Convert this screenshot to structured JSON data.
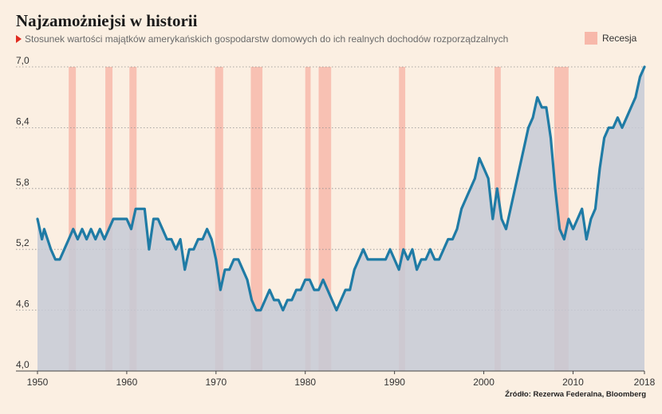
{
  "chart_data": {
    "type": "line",
    "title": "Najzamożniejsi w historii",
    "subtitle": "Stosunek wartości majątków amerykańskich gospodarstw domowych do ich realnych dochodów rozporządzalnych",
    "legend": {
      "label": "Recesja",
      "placement": "top-right"
    },
    "source": "Źródło: Rezerwa Federalna, Bloomberg",
    "colors": {
      "line": "#1f7ba5",
      "area": "#c5cad6",
      "recession": "#f7b8aa",
      "background": "#fbefe2"
    },
    "xlim": [
      1950,
      2018
    ],
    "ylim": [
      4.0,
      7.0
    ],
    "x_ticks": [
      "1950",
      "1960",
      "1970",
      "1980",
      "1990",
      "2000",
      "2010",
      "2018"
    ],
    "y_ticks": [
      "4,0",
      "4,6",
      "5,2",
      "5,8",
      "6,4",
      "7,0"
    ],
    "grid": "horizontal dotted",
    "recessions": [
      [
        1953.5,
        1954.3
      ],
      [
        1957.6,
        1958.4
      ],
      [
        1960.3,
        1961.1
      ],
      [
        1969.9,
        1970.8
      ],
      [
        1973.9,
        1975.2
      ],
      [
        1980.0,
        1980.6
      ],
      [
        1981.5,
        1982.9
      ],
      [
        1990.5,
        1991.2
      ],
      [
        2001.2,
        2001.9
      ],
      [
        2007.9,
        2009.5
      ]
    ],
    "series": [
      {
        "x": [
          1950.0,
          1950.5,
          1950.75,
          1951.5,
          1952.0,
          1952.5,
          1953.0,
          1953.5,
          1954.0,
          1954.5,
          1955.0,
          1955.5,
          1956.0,
          1956.5,
          1957.0,
          1957.5,
          1958.0,
          1958.5,
          1959.0,
          1959.5,
          1960.0,
          1960.5,
          1961.0,
          1961.5,
          1962.0,
          1962.5,
          1963.0,
          1963.5,
          1964.0,
          1964.5,
          1965.0,
          1965.5,
          1966.0,
          1966.5,
          1967.0,
          1967.5,
          1968.0,
          1968.5,
          1969.0,
          1969.5,
          1970.0,
          1970.5,
          1971.0,
          1971.5,
          1972.0,
          1972.5,
          1973.0,
          1973.5,
          1974.0,
          1974.5,
          1975.0,
          1975.5,
          1976.0,
          1976.5,
          1977.0,
          1977.5,
          1978.0,
          1978.5,
          1979.0,
          1979.5,
          1980.0,
          1980.5,
          1981.0,
          1981.5,
          1982.0,
          1982.5,
          1983.0,
          1983.5,
          1984.0,
          1984.5,
          1985.0,
          1985.5,
          1986.0,
          1986.5,
          1987.0,
          1987.5,
          1988.0,
          1988.5,
          1989.0,
          1989.5,
          1990.0,
          1990.5,
          1991.0,
          1991.5,
          1992.0,
          1992.5,
          1993.0,
          1993.5,
          1994.0,
          1994.5,
          1995.0,
          1995.5,
          1996.0,
          1996.5,
          1997.0,
          1997.5,
          1998.0,
          1998.5,
          1999.0,
          1999.5,
          2000.0,
          2000.5,
          2001.0,
          2001.5,
          2002.0,
          2002.5,
          2003.0,
          2003.5,
          2004.0,
          2004.5,
          2005.0,
          2005.5,
          2006.0,
          2006.5,
          2007.0,
          2007.5,
          2008.0,
          2008.5,
          2009.0,
          2009.5,
          2010.0,
          2010.5,
          2011.0,
          2011.5,
          2012.0,
          2012.5,
          2013.0,
          2013.5,
          2014.0,
          2014.5,
          2015.0,
          2015.5,
          2016.0,
          2016.5,
          2017.0,
          2017.5,
          2018.0
        ],
        "y": [
          5.5,
          5.3,
          5.4,
          5.2,
          5.1,
          5.1,
          5.2,
          5.3,
          5.4,
          5.3,
          5.4,
          5.3,
          5.4,
          5.3,
          5.4,
          5.3,
          5.4,
          5.5,
          5.5,
          5.5,
          5.5,
          5.4,
          5.6,
          5.6,
          5.6,
          5.2,
          5.5,
          5.5,
          5.4,
          5.3,
          5.3,
          5.2,
          5.3,
          5.0,
          5.2,
          5.2,
          5.3,
          5.3,
          5.4,
          5.3,
          5.1,
          4.8,
          5.0,
          5.0,
          5.1,
          5.1,
          5.0,
          4.9,
          4.7,
          4.6,
          4.6,
          4.7,
          4.8,
          4.7,
          4.7,
          4.6,
          4.7,
          4.7,
          4.8,
          4.8,
          4.9,
          4.9,
          4.8,
          4.8,
          4.9,
          4.8,
          4.7,
          4.6,
          4.7,
          4.8,
          4.8,
          5.0,
          5.1,
          5.2,
          5.1,
          5.1,
          5.1,
          5.1,
          5.1,
          5.2,
          5.1,
          5.0,
          5.2,
          5.1,
          5.2,
          5.0,
          5.1,
          5.1,
          5.2,
          5.1,
          5.1,
          5.2,
          5.3,
          5.3,
          5.4,
          5.6,
          5.7,
          5.8,
          5.9,
          6.1,
          6.0,
          5.9,
          5.5,
          5.8,
          5.5,
          5.4,
          5.6,
          5.8,
          6.0,
          6.2,
          6.4,
          6.5,
          6.7,
          6.6,
          6.6,
          6.3,
          5.8,
          5.4,
          5.3,
          5.5,
          5.4,
          5.5,
          5.6,
          5.3,
          5.5,
          5.6,
          6.0,
          6.3,
          6.4,
          6.4,
          6.5,
          6.4,
          6.5,
          6.6,
          6.7,
          6.9,
          7.0
        ]
      }
    ]
  }
}
